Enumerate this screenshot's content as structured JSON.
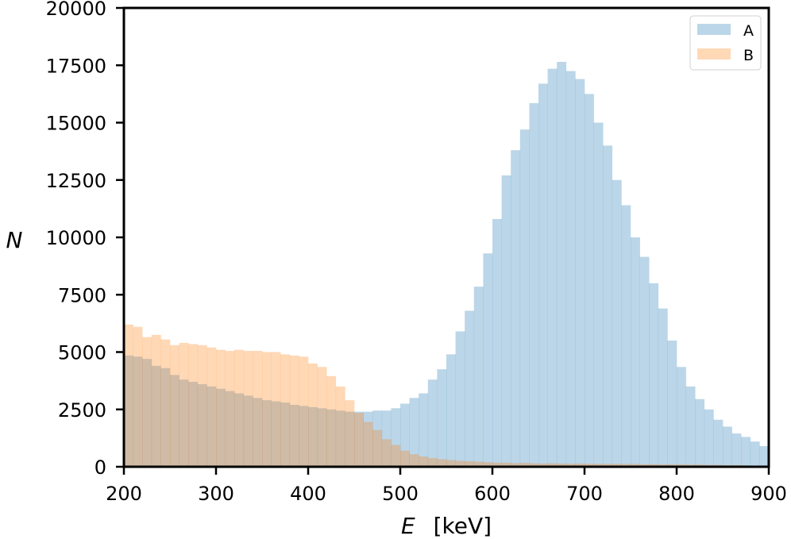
{
  "chart_data": {
    "type": "histogram",
    "xlabel_symbol": "E",
    "xlabel_unit": "[keV]",
    "ylabel": "N",
    "xlim": [
      200,
      900
    ],
    "ylim": [
      0,
      20000
    ],
    "xticks": [
      "200",
      "300",
      "400",
      "500",
      "600",
      "700",
      "800",
      "900"
    ],
    "yticks": [
      "0",
      "2500",
      "5000",
      "7500",
      "10000",
      "12500",
      "15000",
      "17500",
      "20000"
    ],
    "bin_width": 10,
    "bin_edges_start": 200,
    "legend_position": "top-right",
    "series": [
      {
        "name": "A",
        "color": "#1f77b4",
        "alpha": 0.3,
        "values": [
          4850,
          4800,
          4700,
          4400,
          4300,
          4000,
          3800,
          3700,
          3600,
          3500,
          3400,
          3300,
          3200,
          3100,
          3000,
          2900,
          2850,
          2800,
          2700,
          2650,
          2600,
          2550,
          2500,
          2450,
          2400,
          2400,
          2400,
          2450,
          2450,
          2550,
          2750,
          3000,
          3200,
          3800,
          4250,
          4900,
          5900,
          6800,
          7850,
          9300,
          10800,
          12700,
          13800,
          14700,
          15850,
          16700,
          17350,
          17650,
          17250,
          16900,
          16250,
          15000,
          14000,
          12500,
          11400,
          10000,
          9150,
          8000,
          6900,
          5500,
          4350,
          3500,
          2950,
          2500,
          2050,
          1750,
          1450,
          1300,
          1100,
          900
        ]
      },
      {
        "name": "B",
        "color": "#ff7f0e",
        "alpha": 0.3,
        "values": [
          6200,
          6100,
          5650,
          5750,
          5550,
          5300,
          5400,
          5350,
          5300,
          5200,
          5100,
          5050,
          5100,
          5050,
          5050,
          5000,
          5000,
          4900,
          4850,
          4800,
          4500,
          4350,
          3950,
          3500,
          2900,
          2350,
          1950,
          1600,
          1200,
          950,
          700,
          550,
          450,
          380,
          330,
          290,
          260,
          240,
          220,
          200,
          180,
          180,
          160,
          170,
          150,
          140,
          150,
          140,
          130,
          140,
          130,
          130,
          120,
          130,
          120,
          120,
          110,
          110,
          100,
          100,
          100,
          90,
          90,
          80,
          80,
          70,
          70,
          60,
          50,
          50
        ]
      }
    ]
  }
}
